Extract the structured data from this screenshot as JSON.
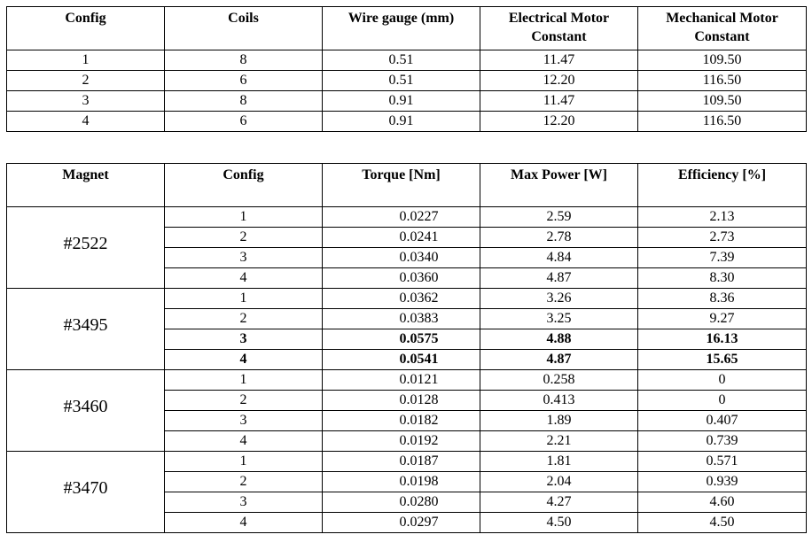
{
  "table1": {
    "headers": [
      "Config",
      "Coils",
      "Wire gauge (mm)",
      "Electrical Motor Constant",
      "Mechanical Motor Constant"
    ],
    "rows": [
      [
        "1",
        "8",
        "0.51",
        "11.47",
        "109.50"
      ],
      [
        "2",
        "6",
        "0.51",
        "12.20",
        "116.50"
      ],
      [
        "3",
        "8",
        "0.91",
        "11.47",
        "109.50"
      ],
      [
        "4",
        "6",
        "0.91",
        "12.20",
        "116.50"
      ]
    ]
  },
  "table2": {
    "headers": [
      "Magnet",
      "Config",
      "Torque [Nm]",
      "Max Power [W]",
      "Efficiency [%]"
    ],
    "groups": [
      {
        "magnet": "#2522",
        "rows": [
          [
            "1",
            "0.0227",
            "2.59",
            "2.13"
          ],
          [
            "2",
            "0.0241",
            "2.78",
            "2.73"
          ],
          [
            "3",
            "0.0340",
            "4.84",
            "7.39"
          ],
          [
            "4",
            "0.0360",
            "4.87",
            "8.30"
          ]
        ]
      },
      {
        "magnet": "#3495",
        "rows": [
          [
            "1",
            "0.0362",
            "3.26",
            "8.36"
          ],
          [
            "2",
            "0.0383",
            "3.25",
            "9.27"
          ],
          [
            "3",
            "0.0575",
            "4.88",
            "16.13"
          ],
          [
            "4",
            "0.0541",
            "4.87",
            "15.65"
          ]
        ]
      },
      {
        "magnet": "#3460",
        "rows": [
          [
            "1",
            "0.0121",
            "0.258",
            "0"
          ],
          [
            "2",
            "0.0128",
            "0.413",
            "0"
          ],
          [
            "3",
            "0.0182",
            "1.89",
            "0.407"
          ],
          [
            "4",
            "0.0192",
            "2.21",
            "0.739"
          ]
        ]
      },
      {
        "magnet": "#3470",
        "rows": [
          [
            "1",
            "0.0187",
            "1.81",
            "0.571"
          ],
          [
            "2",
            "0.0198",
            "2.04",
            "0.939"
          ],
          [
            "3",
            "0.0280",
            "4.27",
            "4.60"
          ],
          [
            "4",
            "0.0297",
            "4.50",
            "4.50"
          ]
        ]
      }
    ]
  }
}
